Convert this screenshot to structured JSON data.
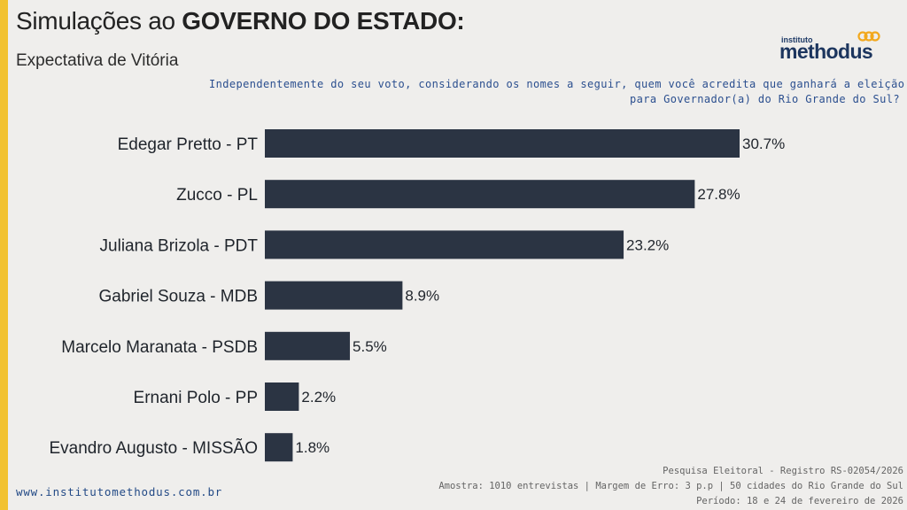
{
  "header": {
    "title_prefix": "Simulações ao ",
    "title_strong": "GOVERNO DO ESTADO:",
    "subtitle": "Expectativa de Vitória"
  },
  "logo": {
    "small": "instituto",
    "name": "methodus"
  },
  "question": {
    "line1": "Independentemente do seu voto, considerando os nomes a seguir, quem você acredita que ganhará a eleição",
    "line2": "para Governador(a) do Rio Grande do Sul?"
  },
  "footer": {
    "website": "www.institutomethodus.com.br",
    "line1": "Pesquisa Eleitoral - Registro RS-02054/2026",
    "line2": "Amostra: 1010 entrevistas | Margem de Erro: 3 p.p | 50 cidades do Rio Grande do Sul",
    "line3": "Período: 18 e 24 de fevereiro de 2026"
  },
  "colors": {
    "accent": "#f2c230",
    "bar": "#2b3443",
    "background": "#efeeec",
    "question_text": "#2b4f8f"
  },
  "chart_data": {
    "type": "bar",
    "orientation": "horizontal",
    "categories": [
      "Edegar Pretto - PT",
      "Zucco - PL",
      "Juliana Brizola - PDT",
      "Gabriel Souza - MDB",
      "Marcelo Maranata - PSDB",
      "Ernani Polo - PP",
      "Evandro Augusto - MISSÃO"
    ],
    "values": [
      30.7,
      27.8,
      23.2,
      8.9,
      5.5,
      2.2,
      1.8
    ],
    "value_labels": [
      "30.7%",
      "27.8%",
      "23.2%",
      "8.9%",
      "5.5%",
      "2.2%",
      "1.8%"
    ],
    "xlim": [
      0,
      30.7
    ],
    "grid": false,
    "legend": "none"
  }
}
